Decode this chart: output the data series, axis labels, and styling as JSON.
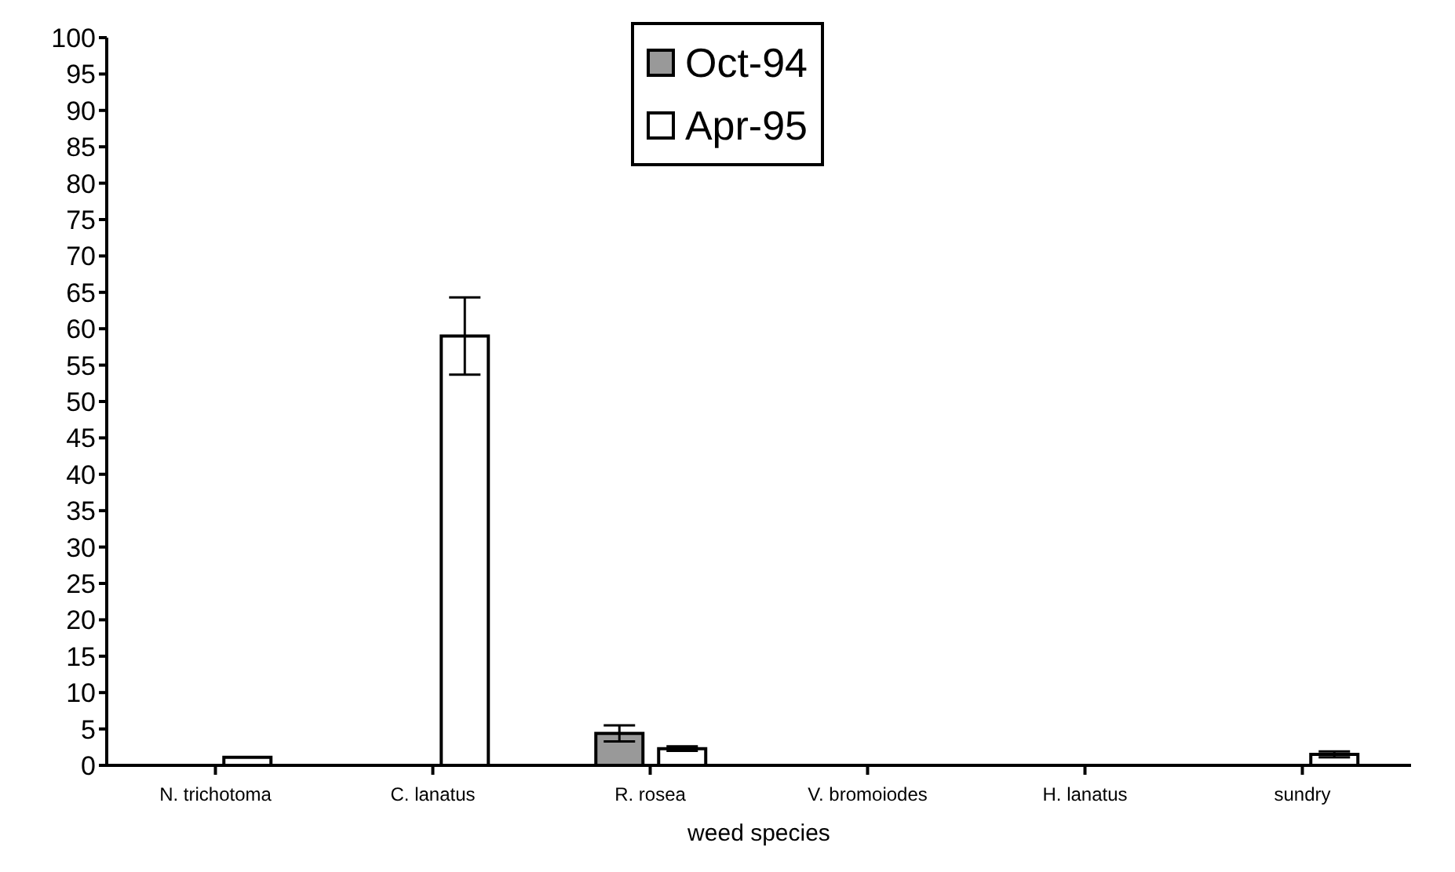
{
  "chart_data": {
    "type": "bar",
    "xlabel": "weed species",
    "categories": [
      "N. trichotoma",
      "C. lanatus",
      "R. rosea",
      "V. bromoiodes",
      "H. lanatus",
      "sundry"
    ],
    "series": [
      {
        "name": "Oct-94",
        "color": "#999999",
        "values": [
          0,
          0,
          4.4,
          0,
          0,
          0
        ],
        "errors": [
          null,
          null,
          1.1,
          null,
          null,
          null
        ]
      },
      {
        "name": "Apr-95",
        "color": "#ffffff",
        "values": [
          1.1,
          59,
          2.3,
          0,
          0,
          1.5
        ],
        "errors": [
          null,
          5.3,
          0.3,
          null,
          null,
          0.4
        ]
      }
    ],
    "ylim": [
      0,
      100
    ],
    "yticks": [
      0,
      5,
      10,
      15,
      20,
      25,
      30,
      35,
      40,
      45,
      50,
      55,
      60,
      65,
      70,
      75,
      80,
      85,
      90,
      95,
      100
    ],
    "grid": false,
    "legend": "top"
  }
}
